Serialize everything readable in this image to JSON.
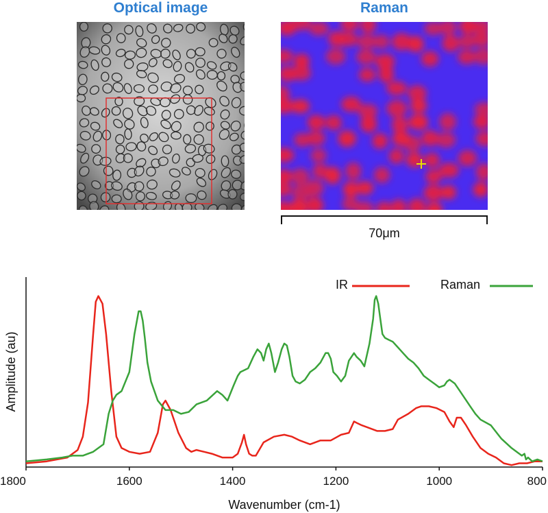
{
  "panels": {
    "optical_title": "Optical image",
    "raman_title": "Raman",
    "scale_bar_label": "70μm"
  },
  "colors": {
    "title_blue": "#2f7fd0",
    "ir": "#e8251b",
    "raman": "#3aa33a",
    "map_blue": "#4a2cf0",
    "map_red": "#e8203a",
    "roi_box": "#e03030",
    "marker": "#e8e000"
  },
  "chart_data": {
    "type": "line",
    "title": "",
    "xlabel": "Wavenumber (cm-1)",
    "ylabel": "Amplitude (au)",
    "xlim": [
      1800,
      800
    ],
    "x_reversed": true,
    "ylim": [
      0,
      100
    ],
    "grid": false,
    "legend_position": "top-right",
    "xticks": [
      1800,
      1600,
      1400,
      1200,
      1000,
      800
    ],
    "series": [
      {
        "name": "IR",
        "color": "#e8251b",
        "x": [
          1800,
          1760,
          1720,
          1700,
          1690,
          1680,
          1670,
          1665,
          1660,
          1652,
          1645,
          1635,
          1625,
          1615,
          1600,
          1580,
          1560,
          1545,
          1535,
          1530,
          1520,
          1505,
          1490,
          1480,
          1470,
          1455,
          1440,
          1420,
          1410,
          1400,
          1390,
          1382,
          1378,
          1374,
          1368,
          1362,
          1355,
          1340,
          1320,
          1300,
          1285,
          1270,
          1250,
          1230,
          1210,
          1190,
          1175,
          1165,
          1158,
          1150,
          1140,
          1120,
          1105,
          1090,
          1080,
          1060,
          1045,
          1035,
          1020,
          1005,
          990,
          980,
          972,
          966,
          958,
          948,
          935,
          920,
          905,
          890,
          875,
          860,
          845,
          830,
          815,
          800
        ],
        "y": [
          2,
          3,
          5,
          9,
          16,
          34,
          70,
          87,
          90,
          86,
          70,
          40,
          16,
          10,
          8,
          7,
          8,
          18,
          33,
          35,
          30,
          18,
          10,
          8,
          9,
          8,
          7,
          5,
          5,
          5,
          7,
          13,
          17,
          12,
          7,
          6,
          6,
          13,
          16,
          17,
          16,
          14,
          12,
          14,
          14,
          17,
          18,
          24,
          23,
          22,
          21,
          19,
          19,
          20,
          25,
          28,
          31,
          32,
          32,
          31,
          29,
          24,
          21,
          26,
          26,
          22,
          16,
          10,
          7,
          5,
          2,
          1,
          2,
          2,
          3,
          3
        ]
      },
      {
        "name": "Raman",
        "color": "#3aa33a",
        "x": [
          1800,
          1760,
          1730,
          1710,
          1690,
          1670,
          1650,
          1640,
          1632,
          1625,
          1615,
          1600,
          1590,
          1582,
          1578,
          1574,
          1570,
          1565,
          1558,
          1545,
          1530,
          1515,
          1500,
          1485,
          1470,
          1450,
          1430,
          1420,
          1410,
          1398,
          1390,
          1385,
          1370,
          1360,
          1352,
          1345,
          1340,
          1335,
          1330,
          1325,
          1318,
          1312,
          1305,
          1300,
          1295,
          1290,
          1284,
          1278,
          1270,
          1260,
          1250,
          1240,
          1230,
          1220,
          1215,
          1210,
          1205,
          1198,
          1190,
          1182,
          1175,
          1165,
          1160,
          1152,
          1145,
          1135,
          1128,
          1125,
          1122,
          1118,
          1114,
          1110,
          1105,
          1098,
          1090,
          1080,
          1070,
          1060,
          1050,
          1040,
          1030,
          1020,
          1010,
          1000,
          990,
          985,
          980,
          970,
          960,
          950,
          940,
          930,
          920,
          900,
          880,
          860,
          840,
          835,
          832,
          828,
          820,
          810,
          800
        ],
        "y": [
          3,
          4,
          5,
          6,
          6,
          8,
          12,
          28,
          35,
          38,
          40,
          50,
          70,
          82,
          82,
          77,
          68,
          55,
          45,
          35,
          30,
          30,
          28,
          29,
          33,
          35,
          40,
          38,
          35,
          43,
          48,
          50,
          52,
          58,
          62,
          60,
          56,
          62,
          65,
          60,
          50,
          55,
          62,
          65,
          64,
          58,
          48,
          45,
          44,
          46,
          50,
          52,
          55,
          60,
          60,
          57,
          50,
          48,
          45,
          48,
          56,
          60,
          58,
          56,
          53,
          65,
          78,
          88,
          90,
          86,
          78,
          70,
          68,
          67,
          66,
          63,
          60,
          57,
          55,
          52,
          48,
          46,
          44,
          42,
          43,
          45,
          46,
          44,
          40,
          36,
          32,
          28,
          25,
          22,
          15,
          10,
          6,
          7,
          4,
          5,
          3,
          4,
          3
        ]
      }
    ]
  }
}
